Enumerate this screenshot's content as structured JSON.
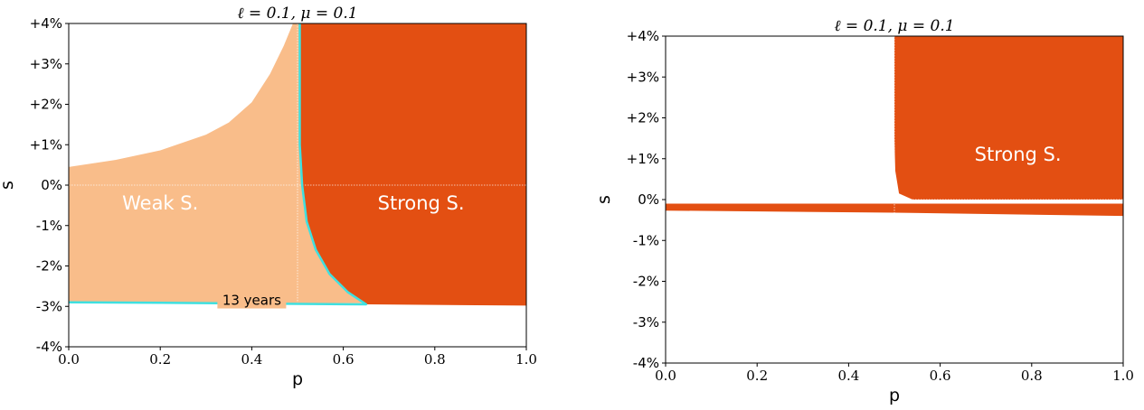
{
  "colors": {
    "weak": "#f9bd8a",
    "strong": "#e34f12",
    "contour": "#3fe0e0",
    "frame": "#000000"
  },
  "chart_data": [
    {
      "type": "area",
      "title": "ℓ = 0.1, μ = 0.1",
      "xlabel": "p",
      "ylabel": "s",
      "xlim": [
        0.0,
        1.0
      ],
      "ylim": [
        -4,
        4
      ],
      "xticks": [
        "0.0",
        "0.2",
        "0.4",
        "0.6",
        "0.8",
        "1.0"
      ],
      "yticks": [
        "+4%",
        "+3%",
        "+2%",
        "+1%",
        "0%",
        "-1%",
        "-2%",
        "-3%",
        "-4%"
      ],
      "grid": false,
      "regions": [
        {
          "name": "Weak S.",
          "color": "weak",
          "boundary": [
            [
              0.0,
              -2.9
            ],
            [
              0.0,
              0.45
            ],
            [
              0.1,
              0.62
            ],
            [
              0.2,
              0.86
            ],
            [
              0.3,
              1.25
            ],
            [
              0.35,
              1.55
            ],
            [
              0.4,
              2.05
            ],
            [
              0.44,
              2.75
            ],
            [
              0.47,
              3.45
            ],
            [
              0.49,
              4.0
            ],
            [
              0.505,
              4.0
            ],
            [
              0.505,
              1.0
            ],
            [
              0.51,
              0.0
            ],
            [
              0.52,
              -0.9
            ],
            [
              0.54,
              -1.6
            ],
            [
              0.57,
              -2.2
            ],
            [
              0.61,
              -2.65
            ],
            [
              0.65,
              -2.92
            ],
            [
              0.4,
              -2.93
            ],
            [
              0.2,
              -2.91
            ],
            [
              0.0,
              -2.9
            ]
          ]
        },
        {
          "name": "Strong S.",
          "color": "strong",
          "boundary": [
            [
              0.505,
              4.0
            ],
            [
              1.0,
              4.0
            ],
            [
              1.0,
              -2.98
            ],
            [
              0.65,
              -2.95
            ],
            [
              0.61,
              -2.65
            ],
            [
              0.57,
              -2.2
            ],
            [
              0.54,
              -1.6
            ],
            [
              0.52,
              -0.9
            ],
            [
              0.51,
              0.0
            ],
            [
              0.505,
              1.0
            ]
          ]
        }
      ],
      "contour": {
        "label": "13 years",
        "points": [
          [
            0.0,
            -2.9
          ],
          [
            0.2,
            -2.91
          ],
          [
            0.4,
            -2.93
          ],
          [
            0.65,
            -2.95
          ],
          [
            0.61,
            -2.65
          ],
          [
            0.57,
            -2.2
          ],
          [
            0.54,
            -1.6
          ],
          [
            0.52,
            -0.9
          ],
          [
            0.51,
            0.0
          ],
          [
            0.505,
            1.0
          ],
          [
            0.505,
            4.0
          ]
        ]
      },
      "reference_lines": {
        "x": 0.5,
        "y": 0
      }
    },
    {
      "type": "area",
      "title": "ℓ = 0.1, μ = 0.1",
      "xlabel": "p",
      "ylabel": "s",
      "xlim": [
        0.0,
        1.0
      ],
      "ylim": [
        -4,
        4
      ],
      "xticks": [
        "0.0",
        "0.2",
        "0.4",
        "0.6",
        "0.8",
        "1.0"
      ],
      "yticks": [
        "+4%",
        "+3%",
        "+2%",
        "+1%",
        "0%",
        "-1%",
        "-2%",
        "-3%",
        "-4%"
      ],
      "grid": false,
      "regions": [
        {
          "name": "Strong S.",
          "color": "strong",
          "boundary": [
            [
              0.5,
              4.0
            ],
            [
              1.0,
              4.0
            ],
            [
              1.0,
              0.0
            ],
            [
              0.54,
              0.0
            ],
            [
              0.51,
              0.15
            ],
            [
              0.502,
              0.7
            ],
            [
              0.5,
              1.5
            ],
            [
              0.5,
              4.0
            ]
          ]
        },
        {
          "name": "",
          "color": "strong",
          "boundary": [
            [
              0.0,
              -0.1
            ],
            [
              1.0,
              -0.1
            ],
            [
              1.0,
              -0.4
            ],
            [
              0.5,
              -0.32
            ],
            [
              0.0,
              -0.27
            ],
            [
              0.0,
              -0.1
            ]
          ]
        }
      ],
      "reference_lines": {
        "x": 0.5,
        "y": 0
      }
    }
  ]
}
